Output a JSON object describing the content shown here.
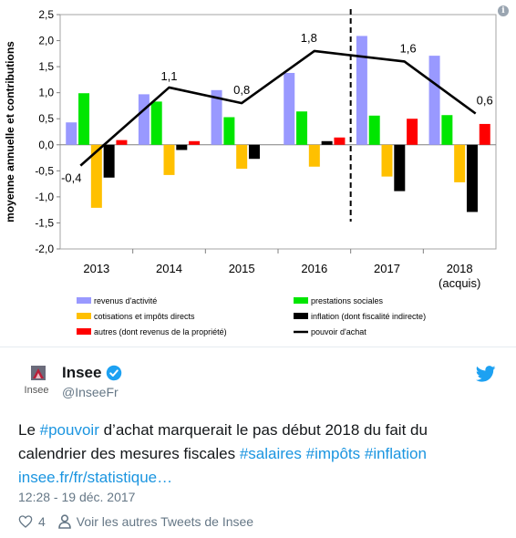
{
  "chart_data": {
    "type": "bar",
    "ylabel": "moyenne annuelle et contributions",
    "ylim": [
      -2.0,
      2.5
    ],
    "yticks": [
      "2,5",
      "2,0",
      "1,5",
      "1,0",
      "0,5",
      "0,0",
      "-0,5",
      "-1,0",
      "-1,5",
      "-2,0"
    ],
    "categories": [
      "2013",
      "2014",
      "2015",
      "2016",
      "2017",
      "2018"
    ],
    "category_sub": [
      "",
      "",
      "",
      "",
      "",
      "(acquis)"
    ],
    "series": [
      {
        "name": "revenus d'activité",
        "color": "#9999ff",
        "values": [
          0.43,
          0.97,
          1.05,
          1.38,
          2.09,
          1.71
        ]
      },
      {
        "name": "prestations sociales",
        "color": "#00e600",
        "values": [
          0.99,
          0.83,
          0.53,
          0.64,
          0.56,
          0.57
        ]
      },
      {
        "name": "cotisations et impôts directs",
        "color": "#ffc000",
        "values": [
          -1.21,
          -0.58,
          -0.46,
          -0.42,
          -0.61,
          -0.72
        ]
      },
      {
        "name": "inflation (dont fiscalité indirecte)",
        "color": "#000000",
        "values": [
          -0.63,
          -0.1,
          -0.27,
          0.07,
          -0.89,
          -1.29
        ]
      },
      {
        "name": "autres (dont revenus de la propriété)",
        "color": "#ff0000",
        "values": [
          0.09,
          0.07,
          0.0,
          0.14,
          0.5,
          0.4
        ]
      }
    ],
    "line": {
      "name": "pouvoir d'achat",
      "color": "#000000",
      "values": [
        -0.4,
        1.1,
        0.8,
        1.8,
        1.6,
        0.6
      ],
      "labels": [
        "-0,4",
        "1,1",
        "0,8",
        "1,8",
        "1,6",
        "0,6"
      ]
    },
    "forecast_separator_between": [
      "2016",
      "2017"
    ],
    "grid": false,
    "legend_position": "bottom"
  },
  "tweet": {
    "display_name": "Insee",
    "handle": "@InseeFr",
    "avatar_text": "Insee",
    "text_parts": [
      {
        "t": "Le ",
        "cls": ""
      },
      {
        "t": "#pouvoir",
        "cls": "hashtag"
      },
      {
        "t": " d’achat marquerait le pas début 2018 du fait du calendrier des mesures fiscales ",
        "cls": ""
      },
      {
        "t": "#salaires",
        "cls": "hashtag"
      },
      {
        "t": " ",
        "cls": ""
      },
      {
        "t": "#impôts",
        "cls": "hashtag"
      },
      {
        "t": " ",
        "cls": ""
      },
      {
        "t": "#inflation",
        "cls": "hashtag"
      },
      {
        "t": " ",
        "cls": ""
      },
      {
        "t": "insee.fr/fr/statistique…",
        "cls": "tlink"
      }
    ],
    "timestamp": "12:28 - 19 déc. 2017",
    "like_count": "4",
    "more_tweets_label": "Voir les autres Tweets de Insee",
    "verified_color": "#1da1f2",
    "brand_color": "#1da1f2"
  }
}
